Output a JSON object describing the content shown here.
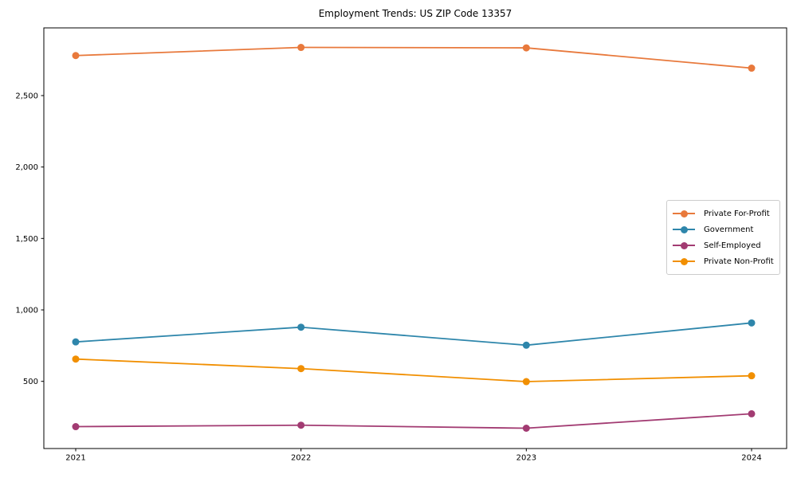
{
  "chart_data": {
    "type": "line",
    "title": "Employment Trends: US ZIP Code 13357",
    "xlabel": "",
    "ylabel": "",
    "x": [
      2021,
      2022,
      2023,
      2024
    ],
    "x_tick_labels": [
      "2021",
      "2022",
      "2023",
      "2024"
    ],
    "y_ticks": [
      500,
      1000,
      1500,
      2000,
      2500
    ],
    "y_tick_labels": [
      "500",
      "1,000",
      "1,500",
      "2,000",
      "2,500"
    ],
    "ylim": [
      30,
      2975
    ],
    "grid": false,
    "legend_position": "center right",
    "series": [
      {
        "name": "Private For-Profit",
        "color": "#E8793C",
        "values": [
          2780,
          2837,
          2834,
          2692
        ]
      },
      {
        "name": "Government",
        "color": "#2E86AB",
        "values": [
          776,
          879,
          753,
          909
        ]
      },
      {
        "name": "Self-Employed",
        "color": "#A23B72",
        "values": [
          183,
          193,
          172,
          273
        ]
      },
      {
        "name": "Private Non-Profit",
        "color": "#F18F01",
        "values": [
          656,
          589,
          498,
          539
        ]
      }
    ],
    "axis_color": "#000000",
    "tick_font_size": 10,
    "marker": "o"
  }
}
